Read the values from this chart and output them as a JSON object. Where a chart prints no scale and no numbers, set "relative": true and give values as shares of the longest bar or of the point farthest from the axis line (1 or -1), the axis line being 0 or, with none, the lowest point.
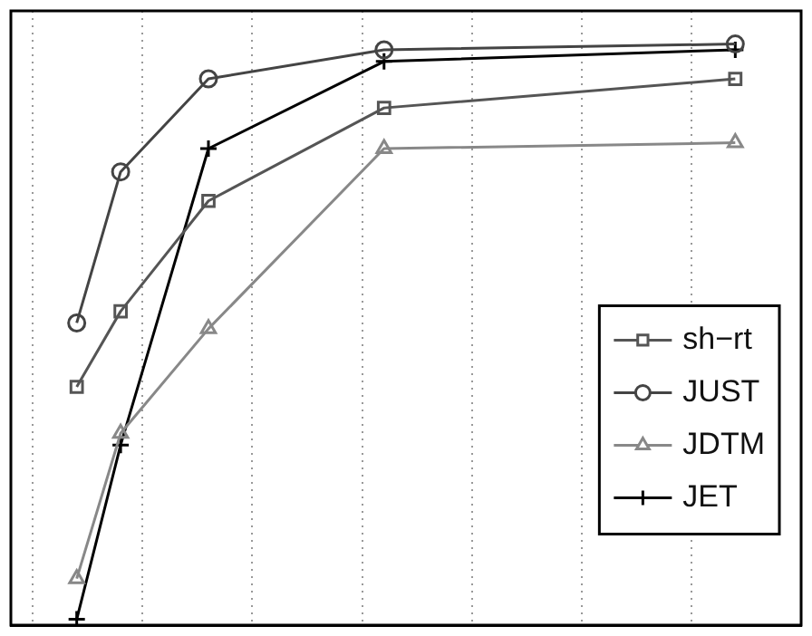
{
  "chart_data": {
    "type": "line",
    "relative": true,
    "categories": [
      null,
      null,
      null,
      null,
      null,
      null,
      null,
      null,
      null,
      null,
      null,
      null,
      null,
      null,
      null,
      null,
      null,
      null,
      null,
      null,
      null,
      null,
      null,
      null,
      null,
      null,
      null,
      null,
      null,
      null,
      null,
      null,
      null,
      null,
      null,
      null,
      null
    ],
    "grid": "x",
    "legend": "right",
    "line_style": "solid",
    "series": [
      {
        "name": "sh−rt",
        "color": "#555555",
        "marker": "square",
        "values": [
          null,
          null,
          null,
          0.41,
          null,
          0.54,
          null,
          null,
          null,
          0.73,
          null,
          null,
          null,
          null,
          null,
          null,
          null,
          0.89,
          null,
          null,
          null,
          null,
          null,
          null,
          null,
          null,
          null,
          null,
          null,
          null,
          null,
          null,
          null,
          0.94,
          null,
          null,
          null
        ]
      },
      {
        "name": "JUST",
        "color": "#444444",
        "marker": "circle",
        "values": [
          null,
          null,
          null,
          0.52,
          null,
          0.78,
          null,
          null,
          null,
          0.94,
          null,
          null,
          null,
          null,
          null,
          null,
          null,
          0.99,
          null,
          null,
          null,
          null,
          null,
          null,
          null,
          null,
          null,
          null,
          null,
          null,
          null,
          null,
          null,
          1,
          null,
          null,
          null
        ]
      },
      {
        "name": "JDTM",
        "color": "#888888",
        "marker": "triangle",
        "values": [
          null,
          null,
          null,
          0.08,
          null,
          0.33,
          null,
          null,
          null,
          0.51,
          null,
          null,
          null,
          null,
          null,
          null,
          null,
          0.82,
          null,
          null,
          null,
          null,
          null,
          null,
          null,
          null,
          null,
          null,
          null,
          null,
          null,
          null,
          null,
          0.83,
          null,
          null,
          null
        ]
      },
      {
        "name": "JET",
        "color": "#000000",
        "marker": "cross",
        "values": [
          null,
          null,
          null,
          0.01,
          null,
          0.31,
          null,
          null,
          null,
          0.82,
          null,
          null,
          null,
          null,
          null,
          null,
          null,
          0.97,
          null,
          null,
          null,
          null,
          null,
          null,
          null,
          null,
          null,
          null,
          null,
          null,
          null,
          null,
          null,
          0.99,
          null,
          null,
          null
        ]
      }
    ]
  }
}
